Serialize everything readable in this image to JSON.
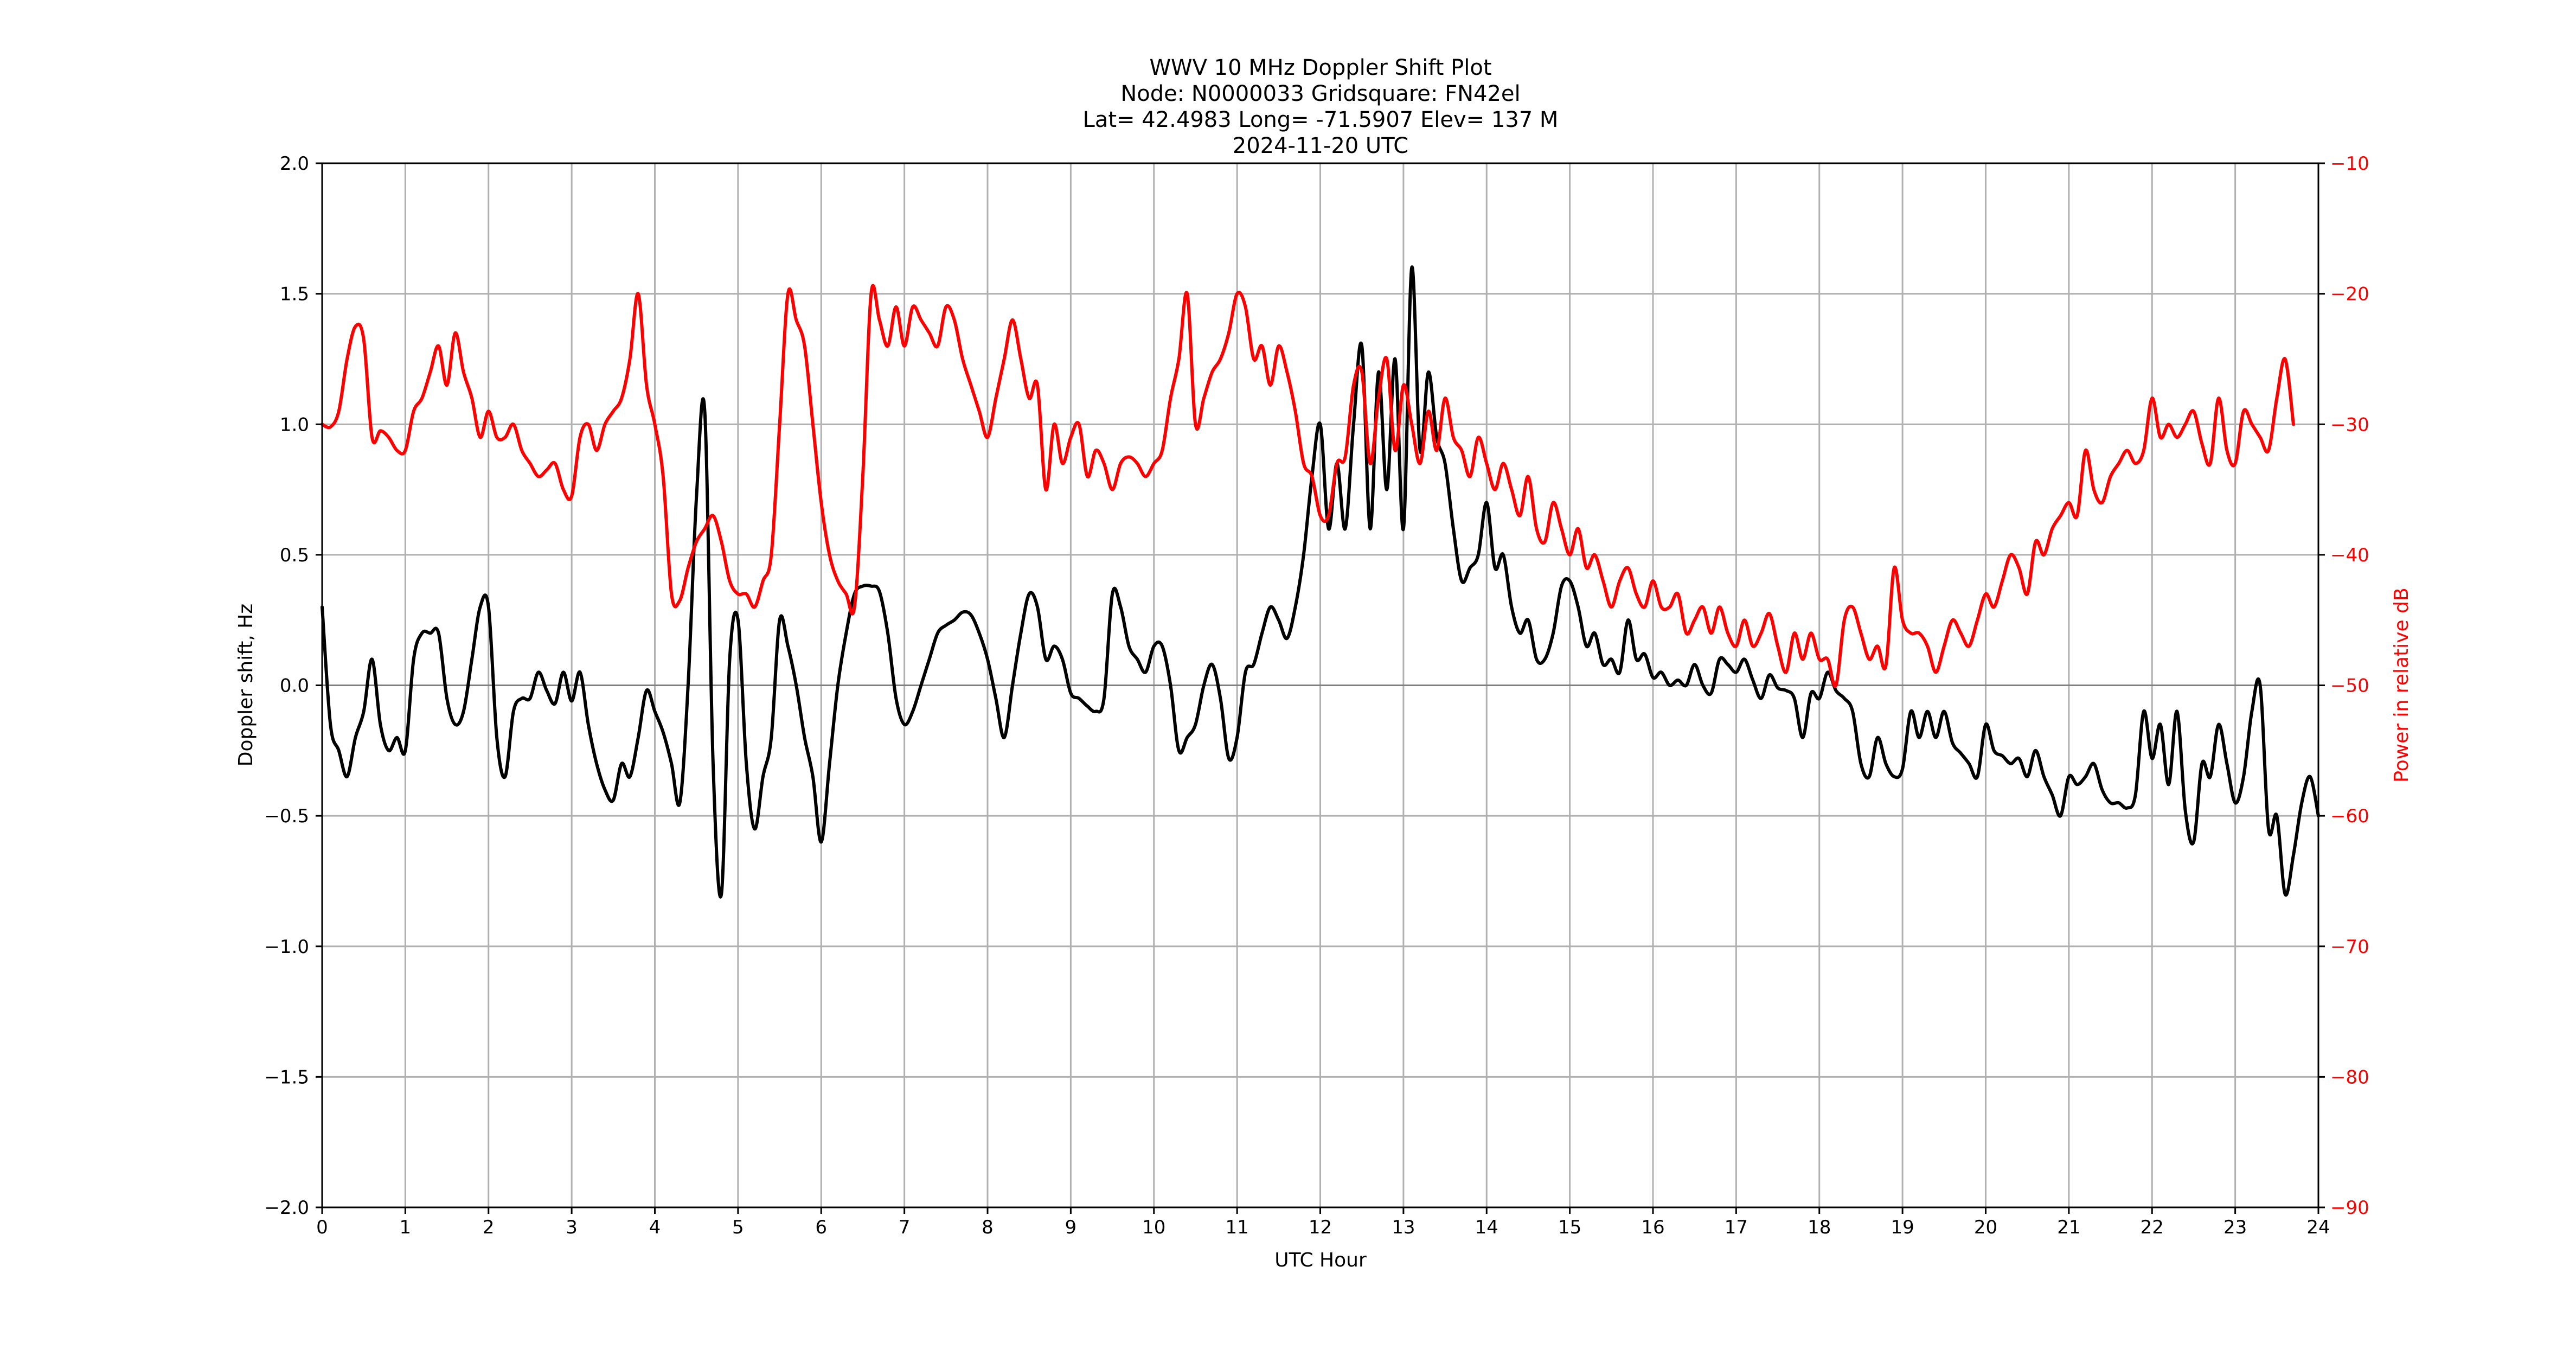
{
  "figure": {
    "title_lines": [
      "WWV 10 MHz Doppler Shift Plot",
      "Node:  N0000033     Gridsquare:  FN42el",
      "Lat= 42.4983    Long= -71.5907    Elev= 137 M",
      "2024-11-20  UTC"
    ],
    "colors": {
      "doppler": "#000000",
      "power": "#ff0000",
      "grid": "#b0b0b0",
      "zero_line": "#808080"
    }
  },
  "chart_data": {
    "type": "line",
    "title": "WWV 10 MHz Doppler Shift Plot",
    "subtitle": [
      "Node:  N0000033     Gridsquare:  FN42el",
      "Lat= 42.4983    Long= -71.5907    Elev= 137 M",
      "2024-11-20  UTC"
    ],
    "xlabel": "UTC Hour",
    "ylabel": "Doppler shift, Hz",
    "ylabel_right": "Power in relative dB",
    "xlim": [
      0,
      24
    ],
    "ylim": [
      -2.0,
      2.0
    ],
    "ylim_right": [
      -90,
      -10
    ],
    "xticks": [
      "0",
      "1",
      "2",
      "3",
      "4",
      "5",
      "6",
      "7",
      "8",
      "9",
      "10",
      "11",
      "12",
      "13",
      "14",
      "15",
      "16",
      "17",
      "18",
      "19",
      "20",
      "21",
      "22",
      "23",
      "24"
    ],
    "yticks": [
      "2.0",
      "1.5",
      "1.0",
      "0.5",
      "0.0",
      "−0.5",
      "−1.0",
      "−1.5",
      "−2.0"
    ],
    "yticks_right": [
      "−10",
      "−20",
      "−30",
      "−40",
      "−50",
      "−60",
      "−70",
      "−80",
      "−90"
    ],
    "grid": true,
    "x_step": 0.1,
    "series": [
      {
        "name": "Doppler shift, Hz",
        "axis": "left",
        "color": "#000000",
        "values": [
          0.3,
          -0.15,
          -0.25,
          -0.35,
          -0.2,
          -0.1,
          0.1,
          -0.15,
          -0.25,
          -0.2,
          -0.25,
          0.1,
          0.2,
          0.2,
          0.2,
          -0.05,
          -0.15,
          -0.1,
          0.1,
          0.3,
          0.3,
          -0.2,
          -0.35,
          -0.1,
          -0.05,
          -0.05,
          0.05,
          -0.02,
          -0.07,
          0.05,
          -0.06,
          0.05,
          -0.15,
          -0.3,
          -0.4,
          -0.44,
          -0.3,
          -0.35,
          -0.2,
          -0.02,
          -0.1,
          -0.18,
          -0.3,
          -0.45,
          0.0,
          0.72,
          1.05,
          -0.3,
          -0.8,
          0.1,
          0.25,
          -0.3,
          -0.55,
          -0.35,
          -0.2,
          0.25,
          0.15,
          0.0,
          -0.2,
          -0.35,
          -0.6,
          -0.3,
          0.0,
          0.2,
          0.35,
          0.38,
          0.38,
          0.36,
          0.2,
          -0.05,
          -0.15,
          -0.1,
          0.0,
          0.1,
          0.2,
          0.23,
          0.25,
          0.28,
          0.27,
          0.2,
          0.1,
          -0.05,
          -0.2,
          0.0,
          0.2,
          0.35,
          0.3,
          0.1,
          0.15,
          0.1,
          -0.03,
          -0.05,
          -0.08,
          -0.1,
          -0.05,
          0.35,
          0.3,
          0.15,
          0.1,
          0.05,
          0.15,
          0.15,
          0.0,
          -0.25,
          -0.2,
          -0.15,
          0.0,
          0.08,
          -0.05,
          -0.28,
          -0.2,
          0.05,
          0.08,
          0.2,
          0.3,
          0.25,
          0.18,
          0.3,
          0.5,
          0.8,
          1.0,
          0.6,
          0.85,
          0.6,
          1.0,
          1.3,
          0.6,
          1.2,
          0.75,
          1.25,
          0.6,
          1.6,
          0.9,
          1.2,
          0.95,
          0.85,
          0.6,
          0.4,
          0.45,
          0.5,
          0.7,
          0.45,
          0.5,
          0.3,
          0.2,
          0.25,
          0.1,
          0.1,
          0.2,
          0.38,
          0.4,
          0.3,
          0.15,
          0.2,
          0.08,
          0.1,
          0.05,
          0.25,
          0.1,
          0.12,
          0.03,
          0.05,
          0.0,
          0.02,
          0.0,
          0.08,
          0.0,
          -0.03,
          0.1,
          0.08,
          0.05,
          0.1,
          0.02,
          -0.05,
          0.04,
          -0.01,
          -0.02,
          -0.05,
          -0.2,
          -0.03,
          -0.05,
          0.05,
          -0.02,
          -0.05,
          -0.1,
          -0.3,
          -0.35,
          -0.2,
          -0.3,
          -0.35,
          -0.32,
          -0.1,
          -0.2,
          -0.1,
          -0.2,
          -0.1,
          -0.22,
          -0.26,
          -0.3,
          -0.35,
          -0.15,
          -0.25,
          -0.27,
          -0.3,
          -0.28,
          -0.35,
          -0.25,
          -0.35,
          -0.42,
          -0.5,
          -0.35,
          -0.38,
          -0.35,
          -0.3,
          -0.4,
          -0.45,
          -0.45,
          -0.47,
          -0.42,
          -0.1,
          -0.28,
          -0.15,
          -0.38,
          -0.1,
          -0.48,
          -0.6,
          -0.3,
          -0.35,
          -0.15,
          -0.3,
          -0.45,
          -0.35,
          -0.1,
          0.0,
          -0.55,
          -0.5,
          -0.8,
          -0.65,
          -0.45,
          -0.35,
          -0.5
        ]
      },
      {
        "name": "Power in relative dB",
        "axis": "right",
        "color": "#ff0000",
        "values": [
          -30,
          -30.2,
          -29,
          -25,
          -22.5,
          -23.5,
          -31,
          -30.5,
          -31,
          -32,
          -32,
          -29,
          -28,
          -26,
          -24,
          -27,
          -23,
          -26,
          -28,
          -31,
          -29,
          -31,
          -31,
          -30,
          -32,
          -33,
          -34,
          -33.5,
          -33,
          -35,
          -35.5,
          -31,
          -30,
          -32,
          -30,
          -29,
          -28,
          -25,
          -20,
          -27,
          -30,
          -34,
          -43,
          -43.5,
          -41,
          -39,
          -38,
          -37,
          -39,
          -42,
          -43,
          -43,
          -44,
          -42,
          -40,
          -30,
          -20,
          -22,
          -24,
          -30,
          -36,
          -40,
          -42,
          -43,
          -44,
          -34,
          -20,
          -22,
          -24,
          -21,
          -24,
          -21,
          -22,
          -23,
          -24,
          -21,
          -22,
          -25,
          -27,
          -29,
          -31,
          -28,
          -25,
          -22,
          -25,
          -28,
          -27,
          -35,
          -30,
          -33,
          -31,
          -30,
          -34,
          -32,
          -33,
          -35,
          -33,
          -32.5,
          -33,
          -34,
          -33,
          -32,
          -28,
          -25,
          -20,
          -30,
          -28,
          -26,
          -25,
          -23,
          -20,
          -21,
          -25,
          -24,
          -27,
          -24,
          -26,
          -29,
          -33,
          -34,
          -37,
          -37,
          -33,
          -32.5,
          -27,
          -26,
          -33,
          -28,
          -25,
          -32,
          -27,
          -30,
          -33,
          -29,
          -32,
          -28,
          -31,
          -32,
          -34,
          -31,
          -33,
          -35,
          -33,
          -35,
          -37,
          -34,
          -38,
          -39,
          -36,
          -38,
          -40,
          -38,
          -41,
          -40,
          -42,
          -44,
          -42,
          -41,
          -43,
          -44,
          -42,
          -44,
          -44,
          -43,
          -46,
          -45,
          -44,
          -46,
          -44,
          -46,
          -47,
          -45,
          -47,
          -46,
          -44.5,
          -47,
          -49,
          -46,
          -48,
          -46,
          -48,
          -48,
          -50,
          -45,
          -44,
          -46,
          -48,
          -47,
          -48.5,
          -41,
          -45,
          -46,
          -46,
          -47,
          -49,
          -47,
          -45,
          -46,
          -47,
          -45,
          -43,
          -44,
          -42,
          -40,
          -41,
          -43,
          -39,
          -40,
          -38,
          -37,
          -36,
          -37,
          -32,
          -35,
          -36,
          -34,
          -33,
          -32,
          -33,
          -32,
          -28,
          -31,
          -30,
          -31,
          -30,
          -29,
          -31.5,
          -33,
          -28,
          -32,
          -33,
          -29,
          -30,
          -31,
          -32,
          -28,
          -25,
          -30
        ]
      }
    ]
  }
}
